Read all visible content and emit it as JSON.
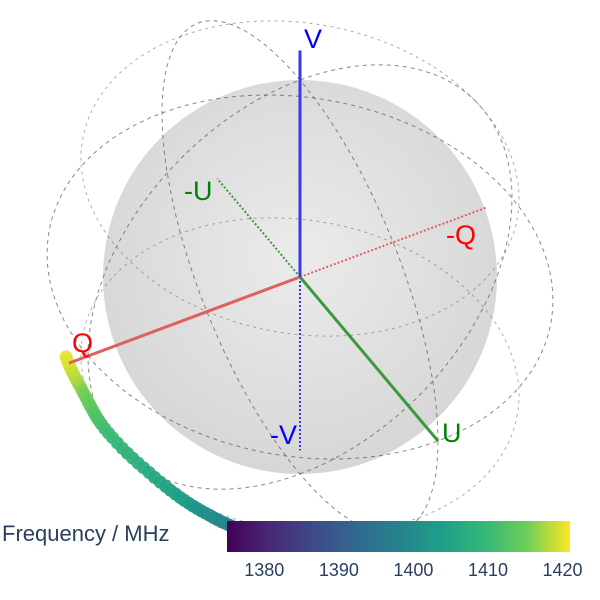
{
  "chart_data": {
    "type": "scatter3d",
    "description_of_axes": [
      "Q",
      "U",
      "V"
    ],
    "axis_labels": {
      "q_pos": "Q",
      "q_neg": "-Q",
      "u_pos": "U",
      "u_neg": "-U",
      "v_pos": "V",
      "v_neg": "-V"
    },
    "axis_colors": {
      "Q": "#e06060",
      "U": "#3c9a3c",
      "V": "#3a3ae0"
    },
    "label_colors": {
      "Q": "#ff0000",
      "U": "#008000",
      "V": "#0000ff"
    },
    "grid": true,
    "colorscale": "viridis",
    "colorbar": {
      "title": "Frequency / MHz",
      "range": [
        1375,
        1421
      ],
      "ticks": [
        1380,
        1390,
        1400,
        1410,
        1420
      ],
      "placement": "bottom"
    },
    "series": [
      {
        "frequency": [
          1376,
          1420
        ],
        "points_qu_v": [
          [
            0.1,
            0.41,
            -0.9
          ],
          [
            0.14,
            0.43,
            -0.89
          ],
          [
            0.18,
            0.45,
            -0.87
          ],
          [
            0.22,
            0.47,
            -0.85
          ],
          [
            0.26,
            0.49,
            -0.83
          ],
          [
            0.3,
            0.5,
            -0.81
          ],
          [
            0.34,
            0.51,
            -0.79
          ],
          [
            0.38,
            0.52,
            -0.76
          ],
          [
            0.42,
            0.52,
            -0.74
          ],
          [
            0.46,
            0.52,
            -0.72
          ],
          [
            0.5,
            0.51,
            -0.7
          ],
          [
            0.54,
            0.5,
            -0.68
          ],
          [
            0.58,
            0.49,
            -0.66
          ],
          [
            0.62,
            0.47,
            -0.63
          ],
          [
            0.66,
            0.44,
            -0.61
          ],
          [
            0.7,
            0.41,
            -0.58
          ],
          [
            0.74,
            0.37,
            -0.56
          ],
          [
            0.78,
            0.33,
            -0.53
          ],
          [
            0.82,
            0.28,
            -0.49
          ],
          [
            0.86,
            0.21,
            -0.45
          ],
          [
            0.89,
            0.12,
            -0.44
          ],
          [
            0.9,
            0.02,
            -0.43
          ],
          [
            0.89,
            -0.08,
            -0.44
          ],
          [
            0.87,
            -0.16,
            -0.46
          ],
          [
            0.86,
            -0.22,
            -0.45
          ],
          [
            0.87,
            -0.26,
            -0.42
          ],
          [
            0.89,
            -0.28,
            -0.36
          ],
          [
            0.92,
            -0.28,
            -0.27
          ]
        ]
      }
    ]
  }
}
